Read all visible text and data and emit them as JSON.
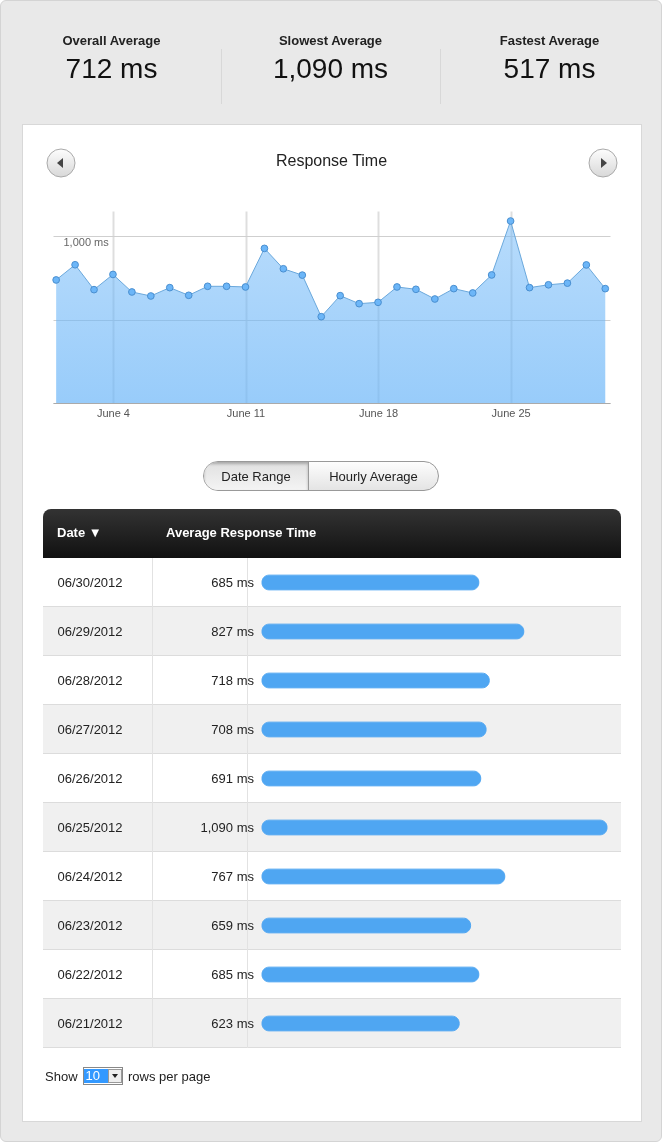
{
  "chart_data": [
    {
      "type": "other",
      "categories": [
        "Overall Average",
        "Slowest Average",
        "Fastest Average"
      ],
      "value_labels": [
        "712 ms",
        "1,090 ms",
        "517 ms"
      ]
    },
    {
      "type": "area",
      "title": "Response Time",
      "x": [
        "2012-06-01",
        "2012-06-02",
        "2012-06-03",
        "2012-06-04",
        "2012-06-05",
        "2012-06-06",
        "2012-06-07",
        "2012-06-08",
        "2012-06-09",
        "2012-06-10",
        "2012-06-11",
        "2012-06-12",
        "2012-06-13",
        "2012-06-14",
        "2012-06-15",
        "2012-06-16",
        "2012-06-17",
        "2012-06-18",
        "2012-06-19",
        "2012-06-20",
        "2012-06-21",
        "2012-06-22",
        "2012-06-23",
        "2012-06-24",
        "2012-06-25",
        "2012-06-26",
        "2012-06-27",
        "2012-06-28",
        "2012-06-29",
        "2012-06-30"
      ],
      "series": [
        {
          "color": "#6cb6f8",
          "values": [
            737,
            828,
            679,
            770,
            665,
            641,
            691,
            645,
            699,
            699,
            695,
            926,
            804,
            766,
            517,
            643,
            595,
            603,
            695,
            681,
            623,
            685,
            659,
            767,
            1090,
            691,
            708,
            718,
            827,
            685
          ]
        }
      ],
      "xlim": [
        "2012-05-31T20:00",
        "2012-06-30T06:00"
      ],
      "xticks": [
        {
          "value": "2012-06-04",
          "label": "June 4"
        },
        {
          "value": "2012-06-11",
          "label": "June 11"
        },
        {
          "value": "2012-06-18",
          "label": "June 18"
        },
        {
          "value": "2012-06-25",
          "label": "June 25"
        }
      ],
      "ylim": [
        0,
        1150
      ],
      "yticks": [
        {
          "value": 0,
          "label": null
        },
        {
          "value": 500,
          "label": null
        },
        {
          "value": 1000,
          "label": "1,000 ms"
        }
      ],
      "grid": true,
      "marker": "circle",
      "annotations": [
        "Date Range",
        "Hourly Average"
      ]
    },
    {
      "type": "bar",
      "orientation": "horizontal",
      "xlabel": "Average Response Time",
      "ylabel": "Date ▼",
      "tick_labels": "y",
      "categories": [
        "06/30/2012",
        "06/29/2012",
        "06/28/2012",
        "06/27/2012",
        "06/26/2012",
        "06/25/2012",
        "06/24/2012",
        "06/23/2012",
        "06/22/2012",
        "06/21/2012"
      ],
      "values": [
        685,
        827,
        718,
        708,
        691,
        1090,
        767,
        659,
        685,
        623
      ],
      "value_labels": [
        "685 ms",
        "827 ms",
        "718 ms",
        "708 ms",
        "691 ms",
        "1,090 ms",
        "767 ms",
        "659 ms",
        "685 ms",
        "623 ms"
      ],
      "color": "#4fa6f2",
      "annotations": [
        "Show",
        "10",
        "rows per page"
      ]
    }
  ]
}
